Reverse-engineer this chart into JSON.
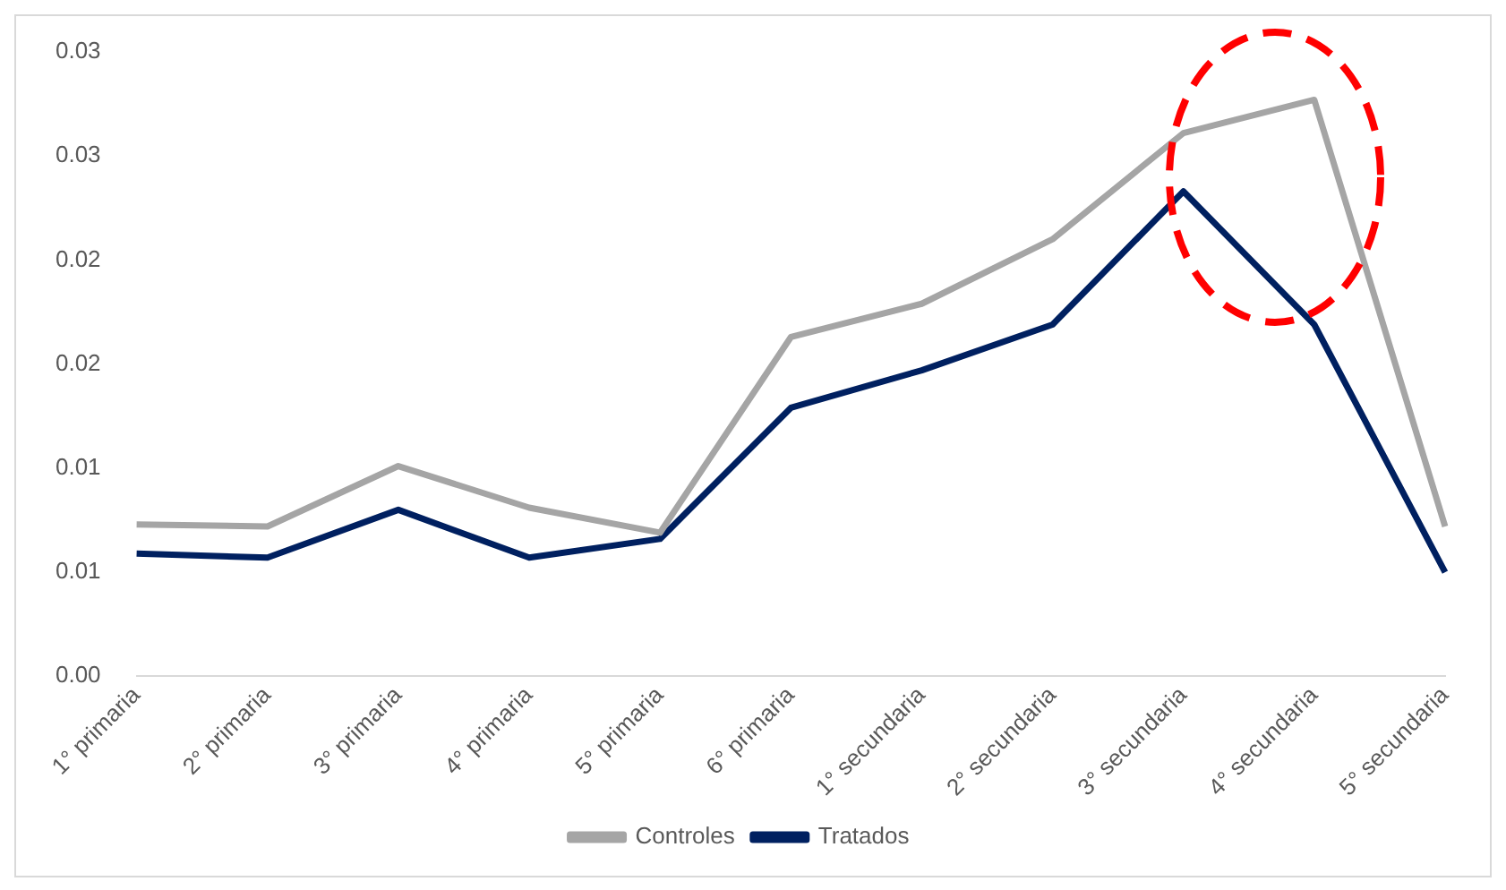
{
  "chart_data": {
    "type": "line",
    "categories": [
      "1° primaria",
      "2° primaria",
      "3° primaria",
      "4° primaria",
      "5° primaria",
      "6° primaria",
      "1° secundaria",
      "2° secundaria",
      "3° secundaria",
      "4° secundaria",
      "5° secundaria"
    ],
    "series": [
      {
        "name": "Controles",
        "color": "#a5a5a5",
        "values": [
          0.0073,
          0.0072,
          0.0101,
          0.0081,
          0.0069,
          0.0163,
          0.0179,
          0.021,
          0.0261,
          0.0277,
          0.0072
        ]
      },
      {
        "name": "Tratados",
        "color": "#002060",
        "values": [
          0.0059,
          0.0057,
          0.008,
          0.0057,
          0.0066,
          0.0129,
          0.0147,
          0.0169,
          0.0233,
          0.0169,
          0.005
        ]
      }
    ],
    "ylim": [
      0,
      0.03
    ],
    "yticks": [
      {
        "value": 0,
        "label": "0.00"
      },
      {
        "value": 0.005,
        "label": "0.01"
      },
      {
        "value": 0.01,
        "label": "0.01"
      },
      {
        "value": 0.015,
        "label": "0.02"
      },
      {
        "value": 0.02,
        "label": "0.02"
      },
      {
        "value": 0.025,
        "label": "0.03"
      },
      {
        "value": 0.03,
        "label": "0.03"
      }
    ],
    "grid": false,
    "legend": "bottom",
    "marker": "none",
    "line_style": "solid"
  }
}
